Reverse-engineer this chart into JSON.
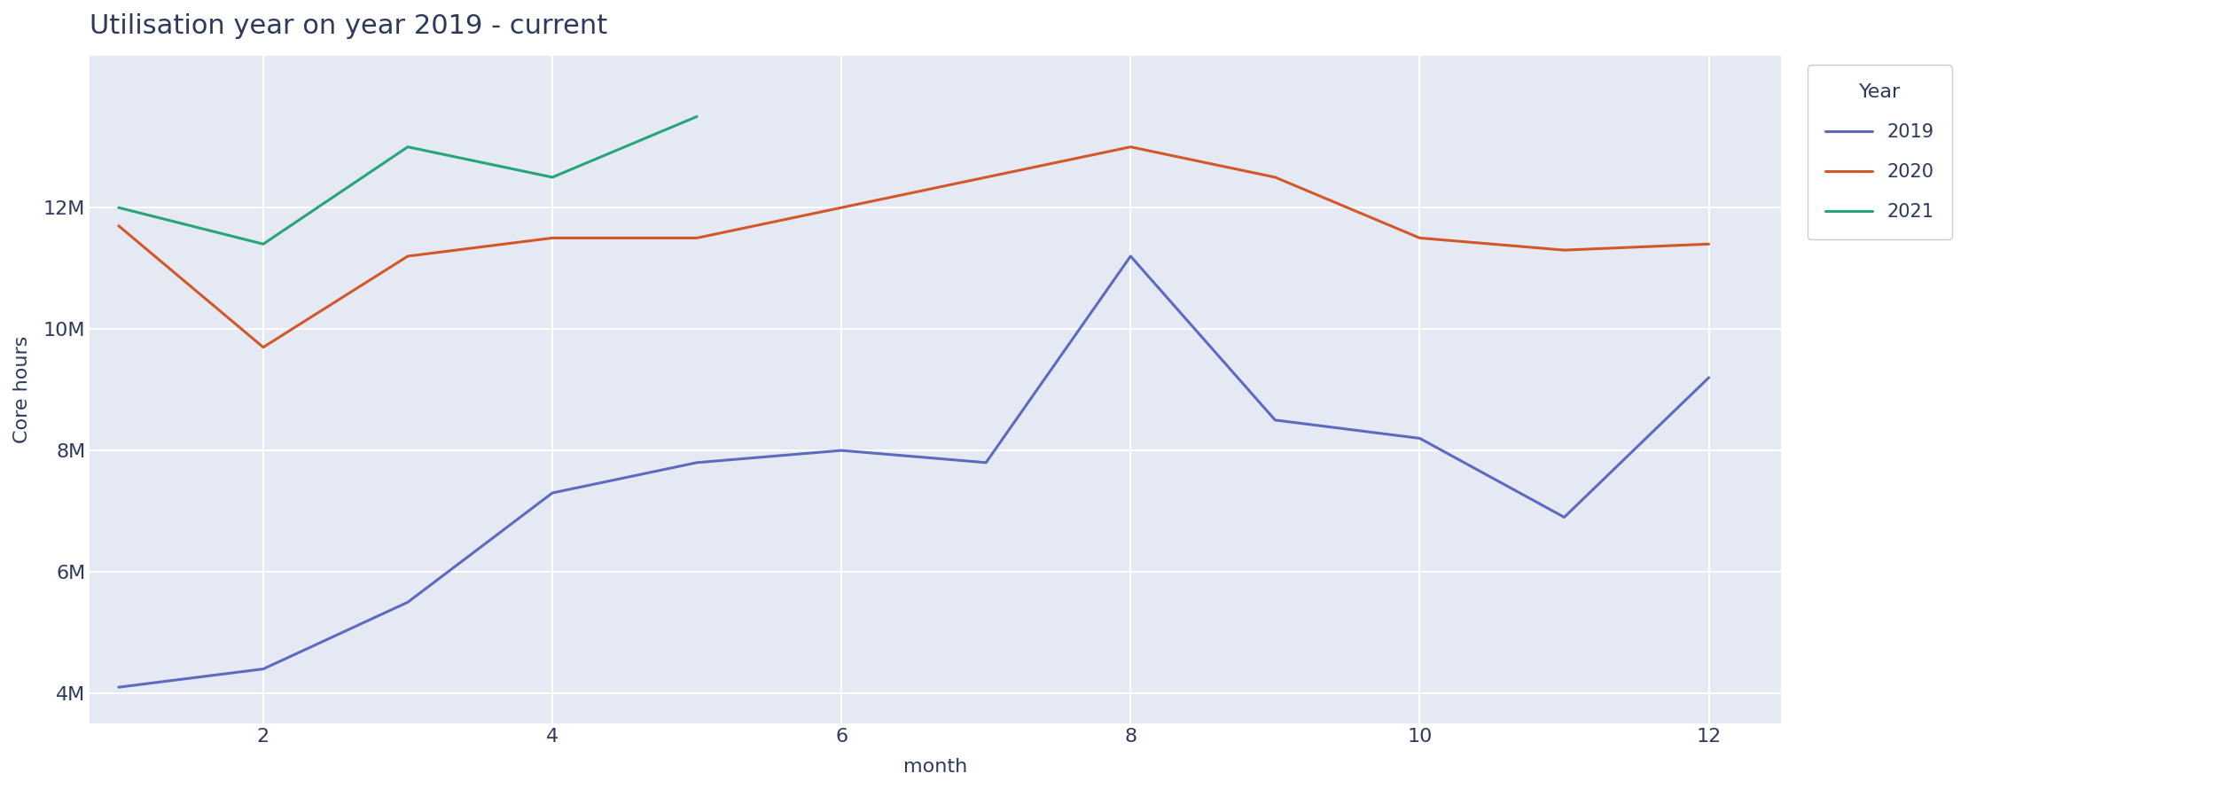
{
  "title": "Utilisation year on year 2019 - current",
  "xlabel": "month",
  "ylabel": "Core hours",
  "legend_title": "Year",
  "background_color": "#e4e9f4",
  "figure_bg": "#ffffff",
  "grid_color": "#ffffff",
  "series": [
    {
      "label": "2019",
      "color": "#5c6bc0",
      "months": [
        1,
        2,
        3,
        4,
        5,
        6,
        7,
        8,
        9,
        10,
        11,
        12
      ],
      "values": [
        4100000,
        4400000,
        5500000,
        7300000,
        7800000,
        8000000,
        7800000,
        11200000,
        8500000,
        8200000,
        6900000,
        9200000
      ]
    },
    {
      "label": "2020",
      "color": "#d4572a",
      "months": [
        1,
        2,
        3,
        4,
        5,
        6,
        7,
        8,
        9,
        10,
        11,
        12
      ],
      "values": [
        11700000,
        9700000,
        11200000,
        11500000,
        11500000,
        12000000,
        12500000,
        13000000,
        12500000,
        11500000,
        11300000,
        11400000
      ]
    },
    {
      "label": "2021",
      "color": "#26a57a",
      "months": [
        1,
        2,
        3,
        4,
        5
      ],
      "values": [
        12000000,
        11400000,
        13000000,
        12500000,
        13500000
      ]
    }
  ],
  "ylim": [
    3500000,
    14500000
  ],
  "xlim": [
    0.8,
    12.5
  ],
  "yticks": [
    4000000,
    6000000,
    8000000,
    10000000,
    12000000
  ],
  "ytick_labels": [
    "4M",
    "6M",
    "8M",
    "10M",
    "12M"
  ],
  "xticks": [
    2,
    4,
    6,
    8,
    10,
    12
  ],
  "title_color": "#2d3a5e",
  "tick_color": "#2d3a5e",
  "label_color": "#2d3a5e",
  "legend_label_color": "#2d3a5e",
  "title_fontsize": 22,
  "axis_label_fontsize": 16,
  "tick_fontsize": 16,
  "legend_fontsize": 15,
  "legend_title_fontsize": 16,
  "line_width": 2.2
}
